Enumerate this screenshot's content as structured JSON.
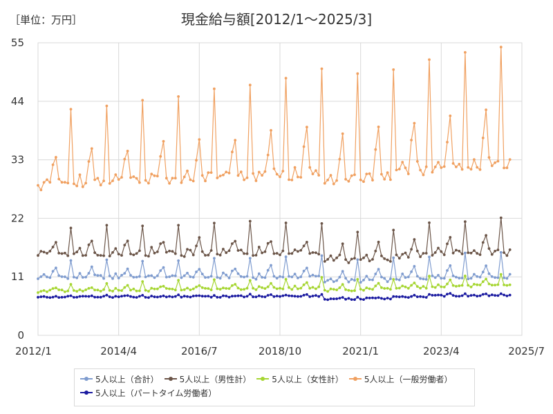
{
  "unit_label": "［単位：万円］",
  "title": "現金給与額[2012/1～2025/3]",
  "chart_data": {
    "type": "line",
    "title": "現金給与額[2012/1～2025/3]",
    "ylabel": "［単位：万円］",
    "xlabel": "",
    "ylim": [
      0,
      55
    ],
    "xlim": [
      "2012-01",
      "2025-07"
    ],
    "y_ticks": [
      "0",
      "11",
      "22",
      "33",
      "44",
      "55"
    ],
    "x_ticks": [
      "2012/1",
      "2014/4",
      "2016/7",
      "2018/10",
      "2021/1",
      "2023/4",
      "2025/7"
    ],
    "grid": true,
    "legend_position": "bottom",
    "x_start": "2012-01",
    "x_end": "2025-03",
    "series": [
      {
        "name": "5人以上（合計）",
        "color": "#7f9ccf",
        "params": {
          "base": 11.0,
          "slope": 0.0004,
          "covid": 0.8,
          "summer": 1.5,
          "winter": 3.0,
          "winter_grow": 0.1,
          "summer_grow": 0.05,
          "noise": 0.35,
          "march_bump": 0.4
        }
      },
      {
        "name": "5人以上（男性計）",
        "color": "#6b5548",
        "params": {
          "base": 15.5,
          "slope": 0.0003,
          "covid": 1.4,
          "summer": 2.2,
          "winter": 5.0,
          "winter_grow": 0.1,
          "summer_grow": 0.05,
          "noise": 0.55,
          "march_bump": 0.6
        }
      },
      {
        "name": "5人以上（女性計）",
        "color": "#a6d632",
        "params": {
          "base": 8.3,
          "slope": 0.007,
          "covid": 0.5,
          "summer": 0.7,
          "winter": 1.4,
          "winter_grow": 0.05,
          "summer_grow": 0.03,
          "noise": 0.2,
          "march_bump": 0.2
        }
      },
      {
        "name": "5人以上（一般労働者）",
        "color": "#f0a060",
        "params": {
          "base": 28.3,
          "slope": 0.025,
          "covid": 1.6,
          "summer": 5.5,
          "winter": 14.5,
          "winter_grow": 0.6,
          "summer_grow": 0.4,
          "noise": 0.9,
          "march_bump": 1.0
        }
      },
      {
        "name": "5人以上（パートタイム労働者）",
        "color": "#1a1aa0",
        "params": {
          "base": 7.2,
          "slope": 0.002,
          "covid": 0.6,
          "summer": 0.15,
          "winter": 0.25,
          "winter_grow": 0.01,
          "summer_grow": 0.01,
          "noise": 0.15,
          "march_bump": 0.1
        }
      }
    ]
  }
}
